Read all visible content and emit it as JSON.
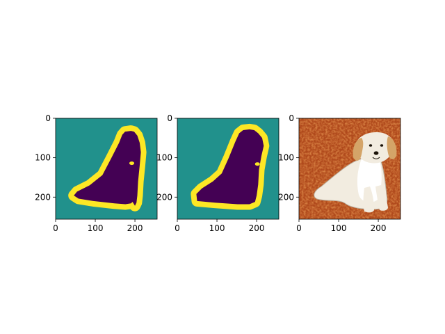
{
  "chart_data": [
    {
      "type": "heatmap",
      "panel": "ground-truth-mask",
      "title": "",
      "xlabel": "",
      "ylabel": "",
      "xlim": [
        0,
        256
      ],
      "ylim": [
        256,
        0
      ],
      "xticks": [
        0,
        100,
        200
      ],
      "yticks": [
        0,
        100,
        200
      ],
      "colormap": {
        "background": "#21918c",
        "object": "#440154",
        "boundary": "#fde725"
      },
      "mask_outline": [
        [
          190,
          32
        ],
        [
          175,
          34
        ],
        [
          168,
          42
        ],
        [
          160,
          62
        ],
        [
          140,
          102
        ],
        [
          118,
          144
        ],
        [
          86,
          170
        ],
        [
          54,
          186
        ],
        [
          46,
          196
        ],
        [
          58,
          204
        ],
        [
          95,
          210
        ],
        [
          148,
          216
        ],
        [
          176,
          218
        ],
        [
          190,
          216
        ],
        [
          194,
          212
        ],
        [
          200,
          222
        ],
        [
          204,
          214
        ],
        [
          206,
          196
        ],
        [
          208,
          160
        ],
        [
          212,
          120
        ],
        [
          215,
          86
        ],
        [
          212,
          62
        ],
        [
          206,
          44
        ],
        [
          198,
          34
        ]
      ],
      "boundary_width": 14,
      "holes": [
        [
          192,
          114
        ]
      ]
    },
    {
      "type": "heatmap",
      "panel": "predicted-mask",
      "title": "",
      "xlabel": "",
      "ylabel": "",
      "xlim": [
        0,
        256
      ],
      "ylim": [
        256,
        0
      ],
      "xticks": [
        0,
        100,
        200
      ],
      "yticks": [
        0,
        100,
        200
      ],
      "colormap": {
        "background": "#21918c",
        "object": "#440154",
        "boundary": "#fde725"
      },
      "mask_outline": [
        [
          182,
          28
        ],
        [
          166,
          30
        ],
        [
          156,
          38
        ],
        [
          146,
          60
        ],
        [
          130,
          100
        ],
        [
          112,
          140
        ],
        [
          90,
          160
        ],
        [
          62,
          178
        ],
        [
          48,
          192
        ],
        [
          50,
          210
        ],
        [
          95,
          214
        ],
        [
          152,
          218
        ],
        [
          182,
          218
        ],
        [
          196,
          212
        ],
        [
          200,
          196
        ],
        [
          204,
          168
        ],
        [
          206,
          130
        ],
        [
          212,
          96
        ],
        [
          218,
          70
        ],
        [
          214,
          50
        ],
        [
          204,
          38
        ],
        [
          194,
          30
        ]
      ],
      "boundary_width": 14,
      "holes": [
        [
          202,
          116
        ]
      ]
    },
    {
      "type": "image",
      "panel": "input-photo",
      "subject": "golden retriever sitting on grass",
      "title": "",
      "xlabel": "",
      "ylabel": "",
      "xlim": [
        0,
        256
      ],
      "ylim": [
        256,
        0
      ],
      "xticks": [
        0,
        100,
        200
      ],
      "yticks": [
        0,
        100,
        200
      ],
      "colors": {
        "grass": "#b04a1c",
        "grass_dark": "#6e2a10",
        "fur": "#f2ece0",
        "fur_shadow": "#b9b0a0",
        "tan": "#d4a468",
        "nose": "#1a1208"
      }
    }
  ]
}
